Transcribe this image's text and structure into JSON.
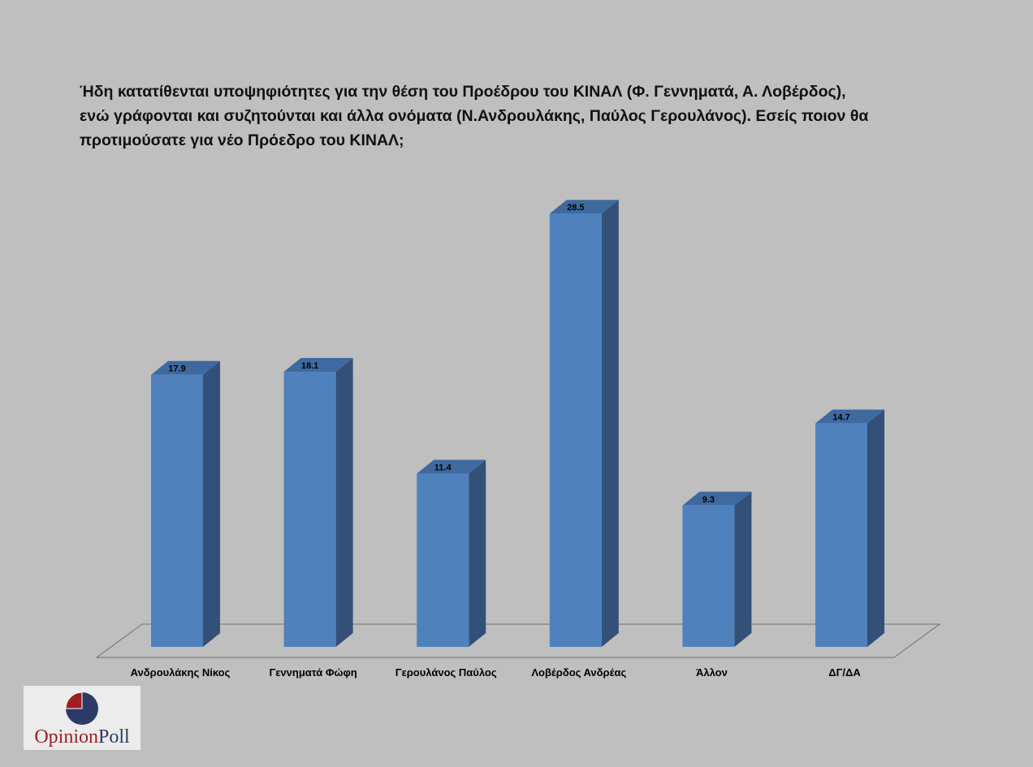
{
  "question": "Ήδη κατατίθενται υποψηφιότητες για την θέση του Προέδρου του ΚΙΝΑΛ (Φ. Γεννηματά, Α. Λοβέρδος),\nενώ γράφονται και συζητούνται και άλλα ονόματα (Ν.Ανδρουλάκης, Παύλος Γερουλάνος). Εσείς ποιον θα\nπροτιμούσατε για νέο Πρόεδρο του ΚΙΝΑΛ;",
  "logo": {
    "part1": "Opinion",
    "part2": "Poll",
    "colors": {
      "red": "#a01e22",
      "navy": "#2b3a67"
    }
  },
  "chart_data": {
    "type": "bar",
    "style": "3d-column",
    "title": "",
    "xlabel": "",
    "ylabel": "",
    "ylim": [
      0,
      30
    ],
    "grid": false,
    "legend": "none",
    "categories": [
      "Ανδρουλάκης Νίκος",
      "Γεννηματά Φώφη",
      "Γερουλάνος Παύλος",
      "Λοβέρδος Ανδρέας",
      "Άλλον",
      "ΔΓ/ΔΑ"
    ],
    "values": [
      17.9,
      18.1,
      11.4,
      28.5,
      9.3,
      14.7
    ],
    "data_labels": [
      "17.9",
      "18.1",
      "11.4",
      "28.5",
      "9.3",
      "14.7"
    ],
    "colors": {
      "front": "#4f81bd",
      "side": "#325078",
      "top": "#3f6aa0",
      "floor_line": "#707070"
    }
  }
}
